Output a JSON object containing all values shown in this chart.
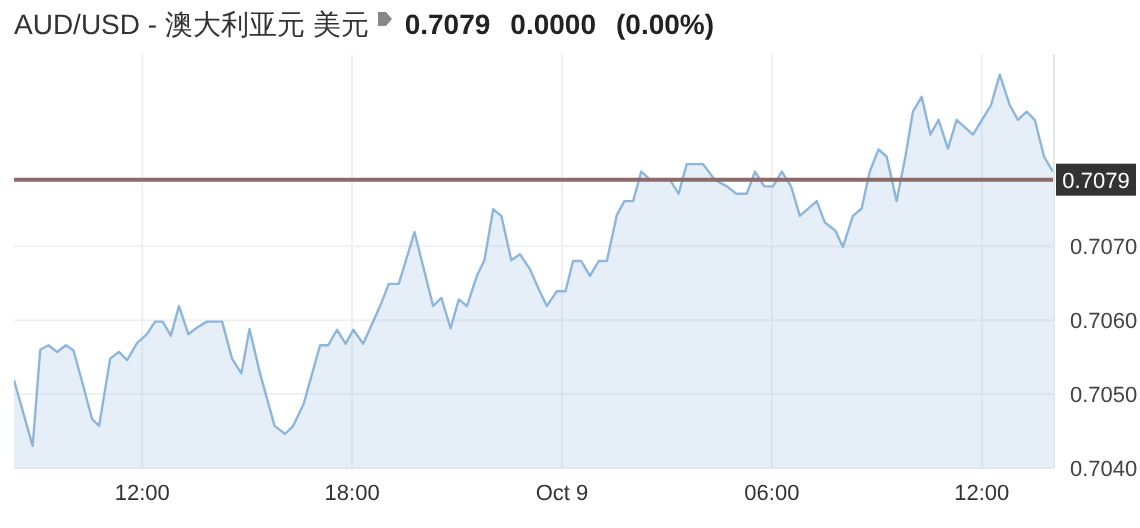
{
  "chart_data": {
    "type": "area",
    "title": "AUD/USD - 澳大利亚元 美元",
    "annotations": [
      "0.7079",
      "0.0000",
      "(0.00%)"
    ],
    "xlim": [
      "--10-08T08:20",
      "--10-09T14:04"
    ],
    "xticks": [
      {
        "value": "--10-08T12:00",
        "label": "12:00"
      },
      {
        "value": "--10-08T18:00",
        "label": "18:00"
      },
      {
        "value": "--10-09T00:00",
        "label": "Oct 9"
      },
      {
        "value": "--10-09T06:00",
        "label": "06:00"
      },
      {
        "value": "--10-09T12:00",
        "label": "12:00"
      }
    ],
    "ylim": [
      0.704,
      0.7096
    ],
    "yticks": [
      {
        "value": 0.704,
        "label": "0.7040"
      },
      {
        "value": 0.705,
        "label": "0.7050"
      },
      {
        "value": 0.706,
        "label": "0.7060"
      },
      {
        "value": 0.707,
        "label": "0.7070"
      }
    ],
    "grid": true,
    "marker": "none",
    "line_style": "solid",
    "ref_lines": [
      {
        "axis": "y",
        "value": 0.7079,
        "label": "0.7079",
        "color": "#8c6b6b"
      }
    ],
    "x": [
      "--10-08T08:20",
      "--10-08T08:52",
      "--10-08T09:05",
      "--10-08T09:19",
      "--10-08T09:34",
      "--10-08T09:49",
      "--10-08T10:02",
      "--10-08T10:16",
      "--10-08T10:34",
      "--10-08T10:46",
      "--10-08T11:05",
      "--10-08T11:20",
      "--10-08T11:34",
      "--10-08T11:51",
      "--10-08T12:08",
      "--10-08T12:22",
      "--10-08T12:35",
      "--10-08T12:49",
      "--10-08T13:03",
      "--10-08T13:19",
      "--10-08T13:34",
      "--10-08T13:51",
      "--10-08T14:17",
      "--10-08T14:34",
      "--10-08T14:50",
      "--10-08T15:04",
      "--10-08T15:22",
      "--10-08T15:47",
      "--10-08T16:05",
      "--10-08T16:19",
      "--10-08T16:37",
      "--10-08T17:05",
      "--10-08T17:19",
      "--10-08T17:34",
      "--10-08T17:49",
      "--10-08T18:02",
      "--10-08T18:19",
      "--10-08T18:48",
      "--10-08T19:03",
      "--10-08T19:20",
      "--10-08T19:47",
      "--10-08T20:19",
      "--10-08T20:33",
      "--10-08T20:49",
      "--10-08T21:03",
      "--10-08T21:17",
      "--10-08T21:34",
      "--10-08T21:47",
      "--10-08T22:02",
      "--10-08T22:16",
      "--10-08T22:33",
      "--10-08T22:48",
      "--10-08T23:05",
      "--10-08T23:20",
      "--10-08T23:34",
      "--10-08T23:51",
      "--10-09T00:06",
      "--10-09T00:19",
      "--10-09T00:33",
      "--10-09T00:48",
      "--10-09T01:03",
      "--10-09T01:17",
      "--10-09T01:34",
      "--10-09T01:47",
      "--10-09T02:02",
      "--10-09T02:16",
      "--10-09T02:31",
      "--10-09T03:05",
      "--10-09T03:20",
      "--10-09T03:34",
      "--10-09T04:02",
      "--10-09T04:22",
      "--10-09T04:43",
      "--10-09T04:59",
      "--10-09T05:17",
      "--10-09T05:31",
      "--10-09T05:47",
      "--10-09T06:02",
      "--10-09T06:17",
      "--10-09T06:33",
      "--10-09T06:48",
      "--10-09T07:17",
      "--10-09T07:31",
      "--10-09T07:49",
      "--10-09T08:02",
      "--10-09T08:19",
      "--10-09T08:34",
      "--10-09T08:48",
      "--10-09T09:03",
      "--10-09T09:17",
      "--10-09T09:34",
      "--10-09T09:49",
      "--10-09T10:02",
      "--10-09T10:17",
      "--10-09T10:32",
      "--10-09T10:46",
      "--10-09T11:02",
      "--10-09T11:17",
      "--10-09T11:45",
      "--10-09T12:16",
      "--10-09T12:31",
      "--10-09T12:48",
      "--10-09T13:02",
      "--10-09T13:17",
      "--10-09T13:31",
      "--10-09T13:47",
      "--10-09T14:02"
    ],
    "series": [
      {
        "color": "#8db6dd",
        "values": [
          0.70519,
          0.7043,
          0.7056,
          0.70566,
          0.70557,
          0.70566,
          0.70559,
          0.70519,
          0.70466,
          0.70457,
          0.70548,
          0.70557,
          0.70546,
          0.70569,
          0.70581,
          0.70598,
          0.70598,
          0.70579,
          0.70619,
          0.70581,
          0.7059,
          0.70598,
          0.70598,
          0.70548,
          0.70528,
          0.70588,
          0.70528,
          0.70457,
          0.70446,
          0.70457,
          0.70487,
          0.70566,
          0.70566,
          0.70587,
          0.70568,
          0.70587,
          0.70568,
          0.70619,
          0.70649,
          0.70649,
          0.70719,
          0.70619,
          0.7063,
          0.70589,
          0.70628,
          0.70619,
          0.7066,
          0.70681,
          0.7075,
          0.70741,
          0.70681,
          0.70689,
          0.70669,
          0.70642,
          0.70619,
          0.70639,
          0.70639,
          0.7068,
          0.7068,
          0.7066,
          0.7068,
          0.7068,
          0.70742,
          0.70761,
          0.70761,
          0.70801,
          0.7079,
          0.7079,
          0.70771,
          0.70811,
          0.70811,
          0.7079,
          0.70781,
          0.70771,
          0.70771,
          0.70801,
          0.70781,
          0.70781,
          0.70801,
          0.70781,
          0.70741,
          0.70761,
          0.70732,
          0.70721,
          0.70699,
          0.70741,
          0.70751,
          0.70801,
          0.70831,
          0.70821,
          0.70761,
          0.70821,
          0.70882,
          0.70902,
          0.70851,
          0.70871,
          0.70832,
          0.70871,
          0.70851,
          0.70891,
          0.70932,
          0.70891,
          0.70871,
          0.70882,
          0.70871,
          0.70821,
          0.70801
        ]
      }
    ]
  }
}
